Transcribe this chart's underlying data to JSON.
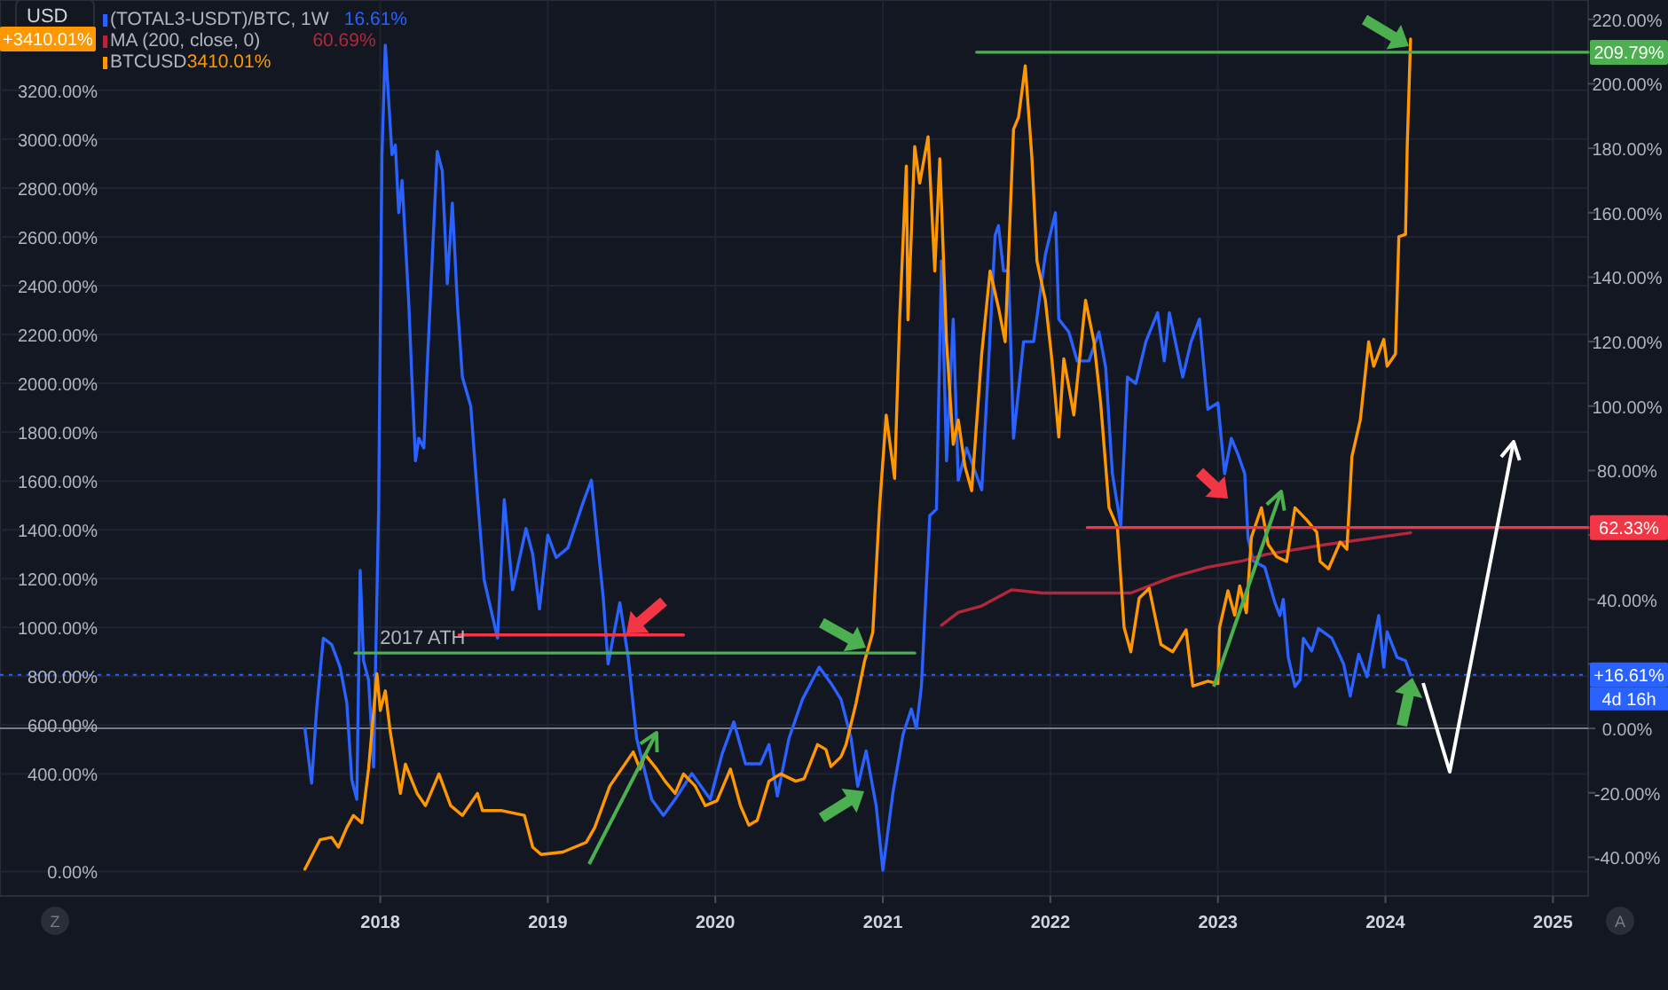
{
  "chart_data": {
    "type": "line",
    "xlim": [
      2015.73,
      2025.21
    ],
    "xticks": [
      2018,
      2019,
      2020,
      2021,
      2022,
      2023,
      2024,
      2025
    ],
    "ylim": [
      -100,
      3570
    ],
    "yticks": [
      {
        "value": 0,
        "label": "0.00%"
      },
      {
        "value": 400,
        "label": "400.00%"
      },
      {
        "value": 600,
        "label": "600.00%"
      },
      {
        "value": 800,
        "label": "800.00%"
      },
      {
        "value": 1000,
        "label": "1000.00%"
      },
      {
        "value": 1200,
        "label": "1200.00%"
      },
      {
        "value": 1400,
        "label": "1400.00%"
      },
      {
        "value": 1600,
        "label": "1600.00%"
      },
      {
        "value": 1800,
        "label": "1800.00%"
      },
      {
        "value": 2000,
        "label": "2000.00%"
      },
      {
        "value": 2200,
        "label": "2200.00%"
      },
      {
        "value": 2400,
        "label": "2400.00%"
      },
      {
        "value": 2600,
        "label": "2600.00%"
      },
      {
        "value": 2800,
        "label": "2800.00%"
      },
      {
        "value": 3000,
        "label": "3000.00%"
      },
      {
        "value": 3200,
        "label": "3200.00%"
      }
    ],
    "y2lim": [
      -52,
      226
    ],
    "y2ticks": [
      {
        "value": -40,
        "label": "-40.00%"
      },
      {
        "value": -20,
        "label": "-20.00%"
      },
      {
        "value": 0,
        "label": "0.00%"
      },
      {
        "value": 20,
        "label": null
      },
      {
        "value": 40,
        "label": "40.00%"
      },
      {
        "value": 60,
        "label": null
      },
      {
        "value": 80,
        "label": "80.00%"
      },
      {
        "value": 100,
        "label": "100.00%"
      },
      {
        "value": 120,
        "label": "120.00%"
      },
      {
        "value": 140,
        "label": "140.00%"
      },
      {
        "value": 160,
        "label": "160.00%"
      },
      {
        "value": 180,
        "label": "180.00%"
      },
      {
        "value": 200,
        "label": "200.00%"
      },
      {
        "value": 220,
        "label": "220.00%"
      }
    ],
    "grid": true,
    "legend": "top left",
    "series": [
      {
        "name": "(TOTAL3-USDT)/BTC, 1W",
        "axis": "y2",
        "color": "#2962ff",
        "x": [
          2017.55,
          2017.59,
          2017.62,
          2017.66,
          2017.71,
          2017.76,
          2017.8,
          2017.83,
          2017.86,
          2017.88,
          2017.9,
          2017.93,
          2017.96,
          2017.99,
          2018.01,
          2018.03,
          2018.07,
          2018.09,
          2018.11,
          2018.13,
          2018.17,
          2018.19,
          2018.21,
          2018.23,
          2018.26,
          2018.28,
          2018.34,
          2018.37,
          2018.4,
          2018.43,
          2018.46,
          2018.49,
          2018.54,
          2018.58,
          2018.62,
          2018.66,
          2018.7,
          2018.74,
          2018.79,
          2018.87,
          2018.91,
          2018.95,
          2019.0,
          2019.05,
          2019.12,
          2019.21,
          2019.26,
          2019.33,
          2019.36,
          2019.43,
          2019.48,
          2019.53,
          2019.62,
          2019.69,
          2019.76,
          2019.86,
          2019.97,
          2020.04,
          2020.11,
          2020.18,
          2020.27,
          2020.32,
          2020.37,
          2020.44,
          2020.52,
          2020.62,
          2020.69,
          2020.75,
          2020.81,
          2020.85,
          2020.9,
          2020.96,
          2021.0,
          2021.06,
          2021.12,
          2021.17,
          2021.2,
          2021.23,
          2021.28,
          2021.32,
          2021.35,
          2021.38,
          2021.42,
          2021.45,
          2021.5,
          2021.59,
          2021.63,
          2021.67,
          2021.69,
          2021.72,
          2021.75,
          2021.78,
          2021.84,
          2021.9,
          2021.97,
          2022.03,
          2022.05,
          2022.11,
          2022.16,
          2022.23,
          2022.29,
          2022.33,
          2022.37,
          2022.42,
          2022.46,
          2022.51,
          2022.57,
          2022.64,
          2022.68,
          2022.71,
          2022.79,
          2022.84,
          2022.89,
          2022.94,
          2023.0,
          2023.04,
          2023.08,
          2023.12,
          2023.16,
          2023.18,
          2023.21,
          2023.28,
          2023.34,
          2023.37,
          2023.39,
          2023.42,
          2023.46,
          2023.49,
          2023.51,
          2023.56,
          2023.6,
          2023.68,
          2023.75,
          2023.79,
          2023.84,
          2023.89,
          2023.93,
          2023.96,
          2023.99,
          2024.01,
          2024.07,
          2024.12,
          2024.15
        ],
        "values": [
          0,
          -17,
          6,
          28,
          26,
          19,
          8,
          -16,
          -22,
          49,
          21,
          15,
          -12,
          68,
          178,
          212,
          178,
          181,
          160,
          170,
          132,
          107,
          83,
          90,
          87,
          112,
          179,
          173,
          138,
          163,
          132,
          109,
          100,
          72,
          46,
          37,
          28,
          71,
          43,
          62,
          54,
          37,
          60,
          53,
          56,
          70,
          77,
          41,
          20,
          39,
          22,
          -3,
          -22,
          -27,
          -22,
          -14,
          -22,
          -8,
          2,
          -11,
          -11,
          -5,
          -21,
          -3,
          9,
          19,
          14,
          9,
          -3,
          -18,
          -7,
          -24,
          -44,
          -20,
          -2,
          6,
          0,
          13,
          66,
          68,
          145,
          83,
          127,
          77,
          87,
          74,
          112,
          153,
          156,
          142,
          142,
          90,
          120,
          120,
          147,
          160,
          127,
          123,
          114,
          114,
          123,
          112,
          79,
          63,
          109,
          107,
          120,
          129,
          114,
          129,
          109,
          120,
          127,
          99,
          101,
          79,
          90,
          85,
          79,
          59,
          52,
          50,
          39,
          35,
          40,
          22,
          13,
          15,
          28,
          24,
          31,
          28,
          20,
          10,
          23,
          16,
          27,
          35,
          19,
          30,
          22,
          21,
          16.61
        ]
      },
      {
        "name": "MA (200, close, 0)",
        "axis": "y2",
        "color": "#b2283a",
        "x": [
          2021.35,
          2021.45,
          2021.59,
          2021.77,
          2021.95,
          2022.09,
          2022.26,
          2022.48,
          2022.73,
          2022.94,
          2023.15,
          2023.29,
          2023.64,
          2024.15
        ],
        "values": [
          32,
          36,
          38,
          43,
          42,
          42,
          42,
          42,
          47,
          50,
          52,
          54,
          57,
          60.69
        ]
      },
      {
        "name": "BTCUSD",
        "color": "#ff9800",
        "x": [
          2017.55,
          2017.64,
          2017.71,
          2017.75,
          2017.8,
          2017.84,
          2017.89,
          2017.93,
          2017.98,
          2018.0,
          2018.03,
          2018.06,
          2018.12,
          2018.15,
          2018.19,
          2018.22,
          2018.27,
          2018.35,
          2018.42,
          2018.49,
          2018.58,
          2018.61,
          2018.72,
          2018.86,
          2018.91,
          2018.96,
          2019.09,
          2019.23,
          2019.28,
          2019.37,
          2019.46,
          2019.51,
          2019.55,
          2019.58,
          2019.65,
          2019.7,
          2019.76,
          2019.81,
          2019.88,
          2019.94,
          2020.01,
          2020.09,
          2020.15,
          2020.2,
          2020.25,
          2020.32,
          2020.39,
          2020.48,
          2020.53,
          2020.61,
          2020.66,
          2020.69,
          2020.75,
          2020.78,
          2020.84,
          2020.89,
          2020.94,
          2020.98,
          2021.02,
          2021.07,
          2021.1,
          2021.14,
          2021.15,
          2021.19,
          2021.22,
          2021.27,
          2021.31,
          2021.34,
          2021.38,
          2021.42,
          2021.45,
          2021.49,
          2021.53,
          2021.59,
          2021.64,
          2021.69,
          2021.73,
          2021.78,
          2021.81,
          2021.85,
          2021.89,
          2021.92,
          2021.97,
          2022.01,
          2022.05,
          2022.08,
          2022.14,
          2022.21,
          2022.26,
          2022.3,
          2022.35,
          2022.4,
          2022.44,
          2022.48,
          2022.53,
          2022.59,
          2022.66,
          2022.73,
          2022.81,
          2022.85,
          2022.94,
          2023.0,
          2023.01,
          2023.06,
          2023.1,
          2023.13,
          2023.17,
          2023.2,
          2023.26,
          2023.3,
          2023.35,
          2023.41,
          2023.46,
          2023.53,
          2023.59,
          2023.61,
          2023.66,
          2023.73,
          2023.77,
          2023.8,
          2023.85,
          2023.9,
          2023.93,
          2023.99,
          2024.01,
          2024.06,
          2024.08,
          2024.12,
          2024.13,
          2024.15
        ],
        "values": [
          10,
          130,
          140,
          100,
          180,
          230,
          200,
          420,
          810,
          660,
          740,
          570,
          320,
          440,
          370,
          320,
          270,
          400,
          270,
          230,
          320,
          250,
          250,
          230,
          100,
          70,
          80,
          120,
          180,
          350,
          440,
          490,
          420,
          480,
          420,
          370,
          320,
          400,
          350,
          270,
          290,
          420,
          270,
          190,
          210,
          370,
          400,
          370,
          380,
          520,
          500,
          430,
          470,
          520,
          690,
          860,
          980,
          1490,
          1870,
          1610,
          2260,
          2890,
          2260,
          2970,
          2820,
          3010,
          2460,
          2920,
          2170,
          1750,
          1850,
          1660,
          1560,
          2120,
          2460,
          2310,
          2170,
          3040,
          3090,
          3300,
          2920,
          2500,
          2340,
          2090,
          1780,
          2100,
          1870,
          2340,
          2170,
          1920,
          1490,
          1410,
          1000,
          900,
          1120,
          1160,
          930,
          900,
          990,
          760,
          780,
          770,
          1000,
          1150,
          1050,
          1170,
          1060,
          1370,
          1490,
          1340,
          1290,
          1270,
          1490,
          1440,
          1390,
          1270,
          1240,
          1350,
          1320,
          1700,
          1850,
          2170,
          2070,
          2180,
          2070,
          2120,
          2600,
          2610,
          2970,
          3410.01
        ]
      },
      {
        "axis": "y2",
        "color": "#f23645",
        "x": [
          2018.47,
          2019.81
        ],
        "values": [
          29,
          29
        ]
      },
      {
        "color": "#4caf50",
        "x": [
          2017.85,
          2021.19
        ],
        "values": [
          895,
          895
        ]
      },
      {
        "axis": "y2",
        "color": "#4caf50",
        "x": [
          2021.56,
          2025.21
        ],
        "values": [
          209.79,
          209.79
        ],
        "value_labels": [
          null,
          "209.79%"
        ]
      },
      {
        "axis": "y2",
        "color": "#f23645",
        "x": [
          2022.22,
          2025.21
        ],
        "values": [
          62.33,
          62.33
        ],
        "value_labels": [
          null,
          "62.33%"
        ]
      }
    ],
    "ref_lines": [
      {
        "axis": "y2",
        "value": 16.61,
        "color": "#2962ff",
        "line_style": "dotted"
      },
      {
        "axis": "y2",
        "value": 0,
        "color": "#787b86",
        "line_style": "solid"
      }
    ],
    "annotations": [
      "USD",
      "16.61%",
      "60.69%",
      "3410.01%",
      "4d 16h",
      "Z",
      "A",
      "+16.61%",
      "+3410.01%",
      {
        "text": "2017 ATH",
        "x": 2017.85,
        "y": 895
      }
    ]
  }
}
